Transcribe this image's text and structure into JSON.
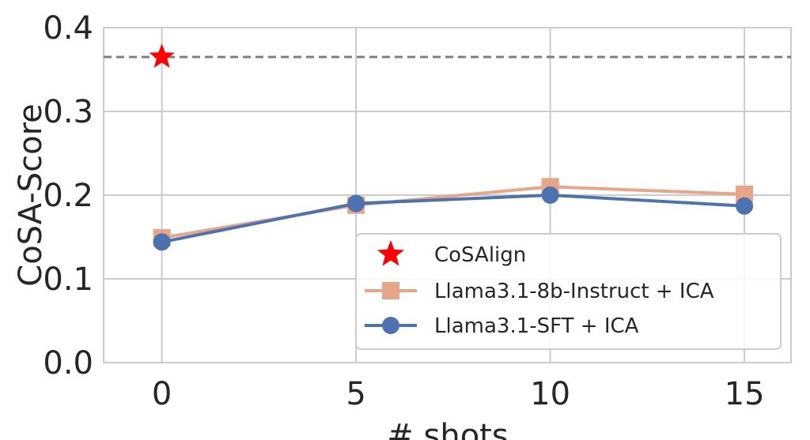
{
  "chart_data": {
    "type": "line",
    "xlabel": "# shots",
    "ylabel": "CoSA-Score",
    "xlim": [
      -1.5,
      16.2
    ],
    "ylim": [
      0.0,
      0.4
    ],
    "xticks": [
      0,
      5,
      10,
      15
    ],
    "yticks": [
      0.0,
      0.1,
      0.2,
      0.3,
      0.4
    ],
    "xtick_labels": [
      "0",
      "5",
      "10",
      "15"
    ],
    "ytick_labels": [
      "0.0",
      "0.1",
      "0.2",
      "0.3",
      "0.4"
    ],
    "grid": true,
    "legend_position": "lower-right",
    "series": [
      {
        "name": "CoSAlign",
        "marker": "star",
        "color": "#ff0000",
        "x": [
          0
        ],
        "values": [
          0.365
        ],
        "reference_line": true,
        "reference_line_color": "#7f7f7f"
      },
      {
        "name": "Llama3.1-8b-Instruct + ICA",
        "marker": "square",
        "color": "#e8a587",
        "x": [
          0,
          5,
          10,
          15
        ],
        "values": [
          0.149,
          0.188,
          0.21,
          0.201
        ]
      },
      {
        "name": "Llama3.1-SFT + ICA",
        "marker": "circle",
        "color": "#4c72b0",
        "x": [
          0,
          5,
          10,
          15
        ],
        "values": [
          0.144,
          0.19,
          0.2,
          0.187
        ]
      }
    ]
  }
}
